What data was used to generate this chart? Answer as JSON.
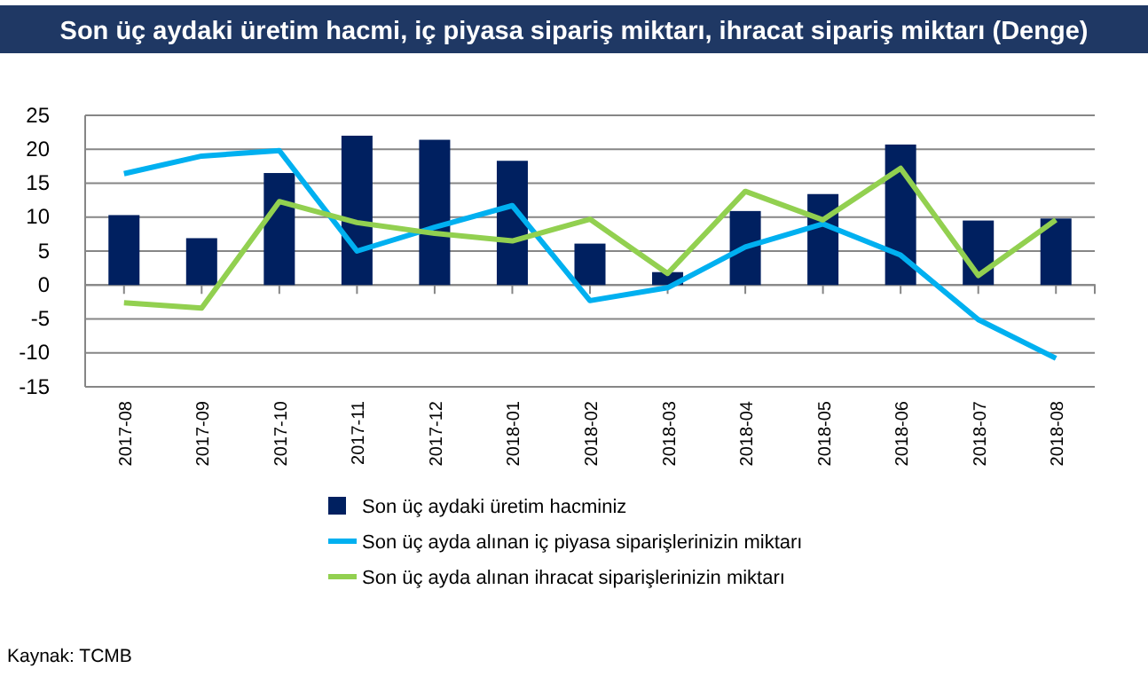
{
  "chart_data": {
    "type": "bar",
    "title": "Son üç aydaki üretim hacmi, iç piyasa sipariş miktarı, ihracat sipariş miktarı (Denge)",
    "categories": [
      "2017-08",
      "2017-09",
      "2017-10",
      "2017-11",
      "2017-12",
      "2018-01",
      "2018-02",
      "2018-03",
      "2018-04",
      "2018-05",
      "2018-06",
      "2018-07",
      "2018-08"
    ],
    "series": [
      {
        "name": "Son üç aydaki üretim hacminiz",
        "color": "#002060",
        "values": [
          10.3,
          6.9,
          16.5,
          22,
          21.4,
          18.3,
          6.1,
          1.9,
          10.9,
          13.4,
          20.7,
          9.5,
          9.8
        ]
      },
      {
        "name": "Son üç ayda alınan iç piyasa siparişlerinizin miktarı",
        "type": "line",
        "color": "#00b0f0",
        "values": [
          16.4,
          19,
          19.8,
          5,
          8.5,
          11.7,
          -2.3,
          -0.4,
          5.6,
          9,
          4.4,
          -5.1,
          -10.8
        ]
      },
      {
        "name": "Son üç ayda alınan ihracat siparişlerinizin miktarı",
        "type": "line",
        "color": "#92d050",
        "values": [
          -2.6,
          -3.4,
          12.3,
          9.2,
          7.6,
          6.5,
          9.7,
          1.7,
          13.8,
          9.6,
          17.2,
          1.4,
          9.6
        ]
      }
    ],
    "ylim": [
      -15,
      25
    ],
    "yticks": [
      -15,
      -10,
      -5,
      0,
      5,
      10,
      15,
      20,
      25
    ],
    "grid": "y",
    "legend": "bottom",
    "marker": "none",
    "annotations": [
      "Kaynak: TCMB"
    ]
  }
}
